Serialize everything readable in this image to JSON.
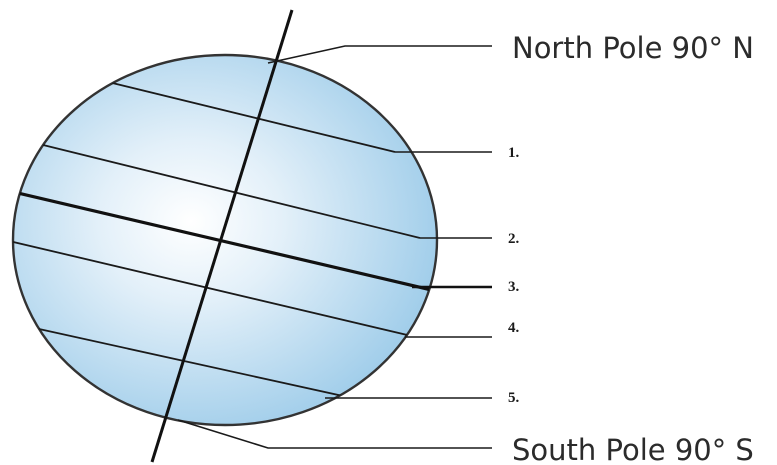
{
  "diagram": {
    "labels": {
      "north_pole": "North Pole 90° N",
      "south_pole": "South Pole 90° S",
      "line_1": "1.",
      "line_2": "2.",
      "line_3": "3.",
      "line_4": "4.",
      "line_5": "5."
    },
    "colors": {
      "globe_fill_center": "#ffffff",
      "globe_fill_edge": "#9ccbe9",
      "globe_outline": "#333333",
      "lines": "#1a1a1a"
    }
  }
}
